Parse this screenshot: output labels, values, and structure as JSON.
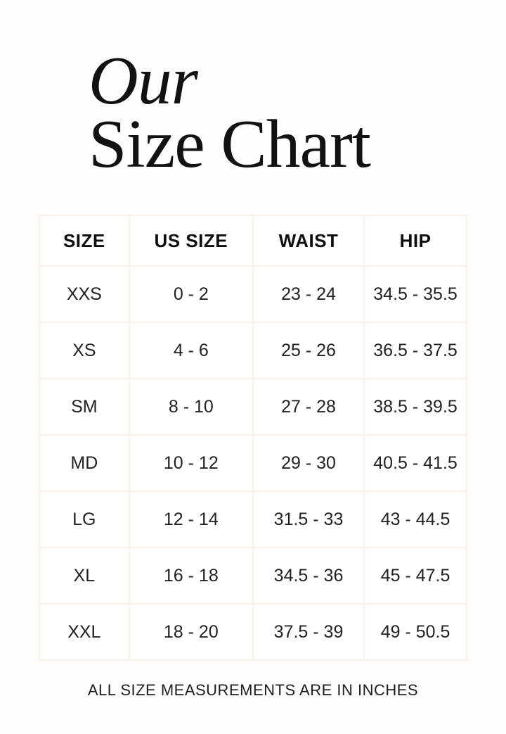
{
  "header": {
    "title_line1": "Our",
    "title_line2": "Size Chart"
  },
  "table": {
    "columns": [
      "SIZE",
      "US SIZE",
      "WAIST",
      "HIP"
    ],
    "rows": [
      [
        "XXS",
        "0 - 2",
        "23 - 24",
        "34.5 - 35.5"
      ],
      [
        "XS",
        "4 - 6",
        "25 - 26",
        "36.5 - 37.5"
      ],
      [
        "SM",
        "8 - 10",
        "27 - 28",
        "38.5 - 39.5"
      ],
      [
        "MD",
        "10 - 12",
        "29 - 30",
        "40.5 - 41.5"
      ],
      [
        "LG",
        "12 - 14",
        "31.5 - 33",
        "43 - 44.5"
      ],
      [
        "XL",
        "16 - 18",
        "34.5 - 36",
        "45 - 47.5"
      ],
      [
        "XXL",
        "18 - 20",
        "37.5 - 39",
        "49 - 50.5"
      ]
    ]
  },
  "footer": {
    "note": "ALL SIZE MEASUREMENTS ARE IN INCHES"
  },
  "colors": {
    "background": "#fffefc",
    "text": "#1d1d1d",
    "grid_border": "#fcefe3"
  }
}
